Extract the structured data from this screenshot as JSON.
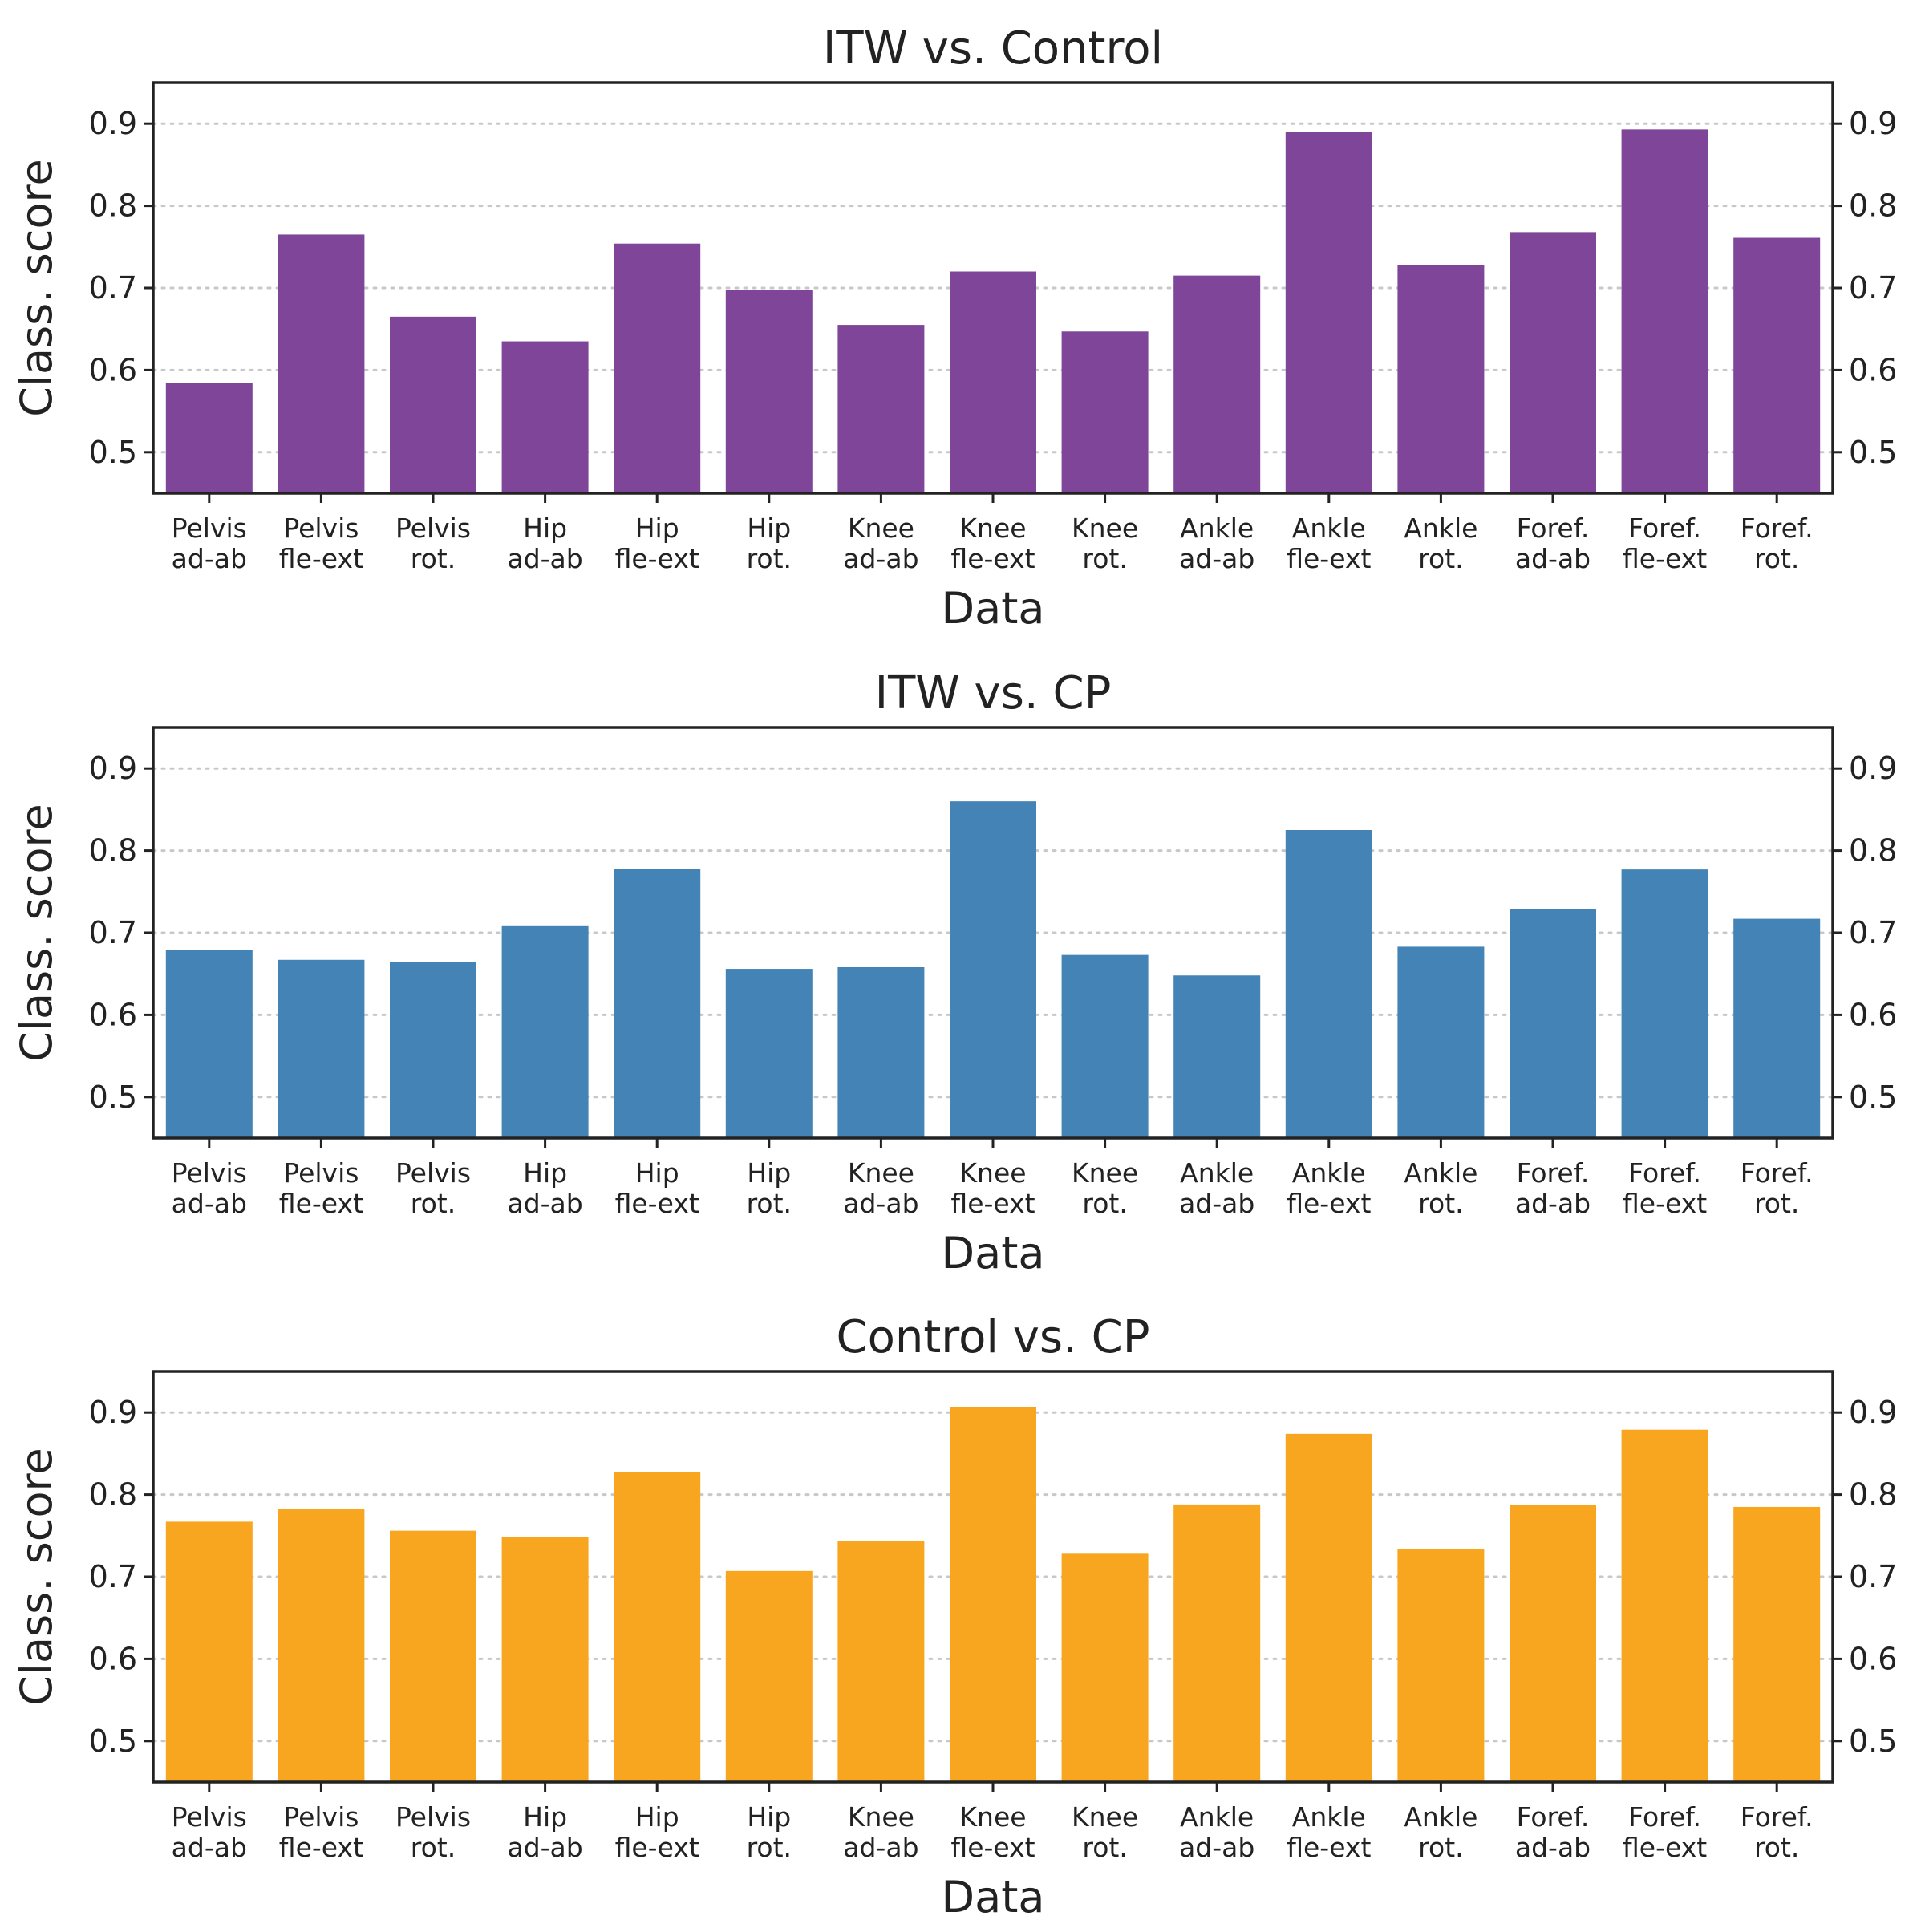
{
  "chart_data": [
    {
      "type": "bar",
      "title": "ITW vs. Control",
      "xlabel": "Data",
      "ylabel": "Class. score",
      "ylim": [
        0.45,
        0.95
      ],
      "yticks": [
        "0.5",
        "0.6",
        "0.7",
        "0.8",
        "0.9"
      ],
      "grid": "horizontal dotted",
      "color": "#7e4599",
      "categories": [
        [
          "Pelvis",
          "ad-ab"
        ],
        [
          "Pelvis",
          "fle-ext"
        ],
        [
          "Pelvis",
          "rot."
        ],
        [
          "Hip",
          "ad-ab"
        ],
        [
          "Hip",
          "fle-ext"
        ],
        [
          "Hip",
          "rot."
        ],
        [
          "Knee",
          "ad-ab"
        ],
        [
          "Knee",
          "fle-ext"
        ],
        [
          "Knee",
          "rot."
        ],
        [
          "Ankle",
          "ad-ab"
        ],
        [
          "Ankle",
          "fle-ext"
        ],
        [
          "Ankle",
          "rot."
        ],
        [
          "Foref.",
          "ad-ab"
        ],
        [
          "Foref.",
          "fle-ext"
        ],
        [
          "Foref.",
          "rot."
        ]
      ],
      "values": [
        0.584,
        0.765,
        0.665,
        0.635,
        0.754,
        0.698,
        0.655,
        0.72,
        0.647,
        0.715,
        0.89,
        0.728,
        0.768,
        0.893,
        0.761
      ]
    },
    {
      "type": "bar",
      "title": "ITW vs. CP",
      "xlabel": "Data",
      "ylabel": "Class. score",
      "ylim": [
        0.45,
        0.95
      ],
      "yticks": [
        "0.5",
        "0.6",
        "0.7",
        "0.8",
        "0.9"
      ],
      "grid": "horizontal dotted",
      "color": "#4383b5",
      "categories": [
        [
          "Pelvis",
          "ad-ab"
        ],
        [
          "Pelvis",
          "fle-ext"
        ],
        [
          "Pelvis",
          "rot."
        ],
        [
          "Hip",
          "ad-ab"
        ],
        [
          "Hip",
          "fle-ext"
        ],
        [
          "Hip",
          "rot."
        ],
        [
          "Knee",
          "ad-ab"
        ],
        [
          "Knee",
          "fle-ext"
        ],
        [
          "Knee",
          "rot."
        ],
        [
          "Ankle",
          "ad-ab"
        ],
        [
          "Ankle",
          "fle-ext"
        ],
        [
          "Ankle",
          "rot."
        ],
        [
          "Foref.",
          "ad-ab"
        ],
        [
          "Foref.",
          "fle-ext"
        ],
        [
          "Foref.",
          "rot."
        ]
      ],
      "values": [
        0.679,
        0.667,
        0.664,
        0.708,
        0.778,
        0.656,
        0.658,
        0.86,
        0.673,
        0.648,
        0.825,
        0.683,
        0.729,
        0.777,
        0.717
      ]
    },
    {
      "type": "bar",
      "title": "Control vs. CP",
      "xlabel": "Data",
      "ylabel": "Class. score",
      "ylim": [
        0.45,
        0.95
      ],
      "yticks": [
        "0.5",
        "0.6",
        "0.7",
        "0.8",
        "0.9"
      ],
      "grid": "horizontal dotted",
      "color": "#f8a51f",
      "categories": [
        [
          "Pelvis",
          "ad-ab"
        ],
        [
          "Pelvis",
          "fle-ext"
        ],
        [
          "Pelvis",
          "rot."
        ],
        [
          "Hip",
          "ad-ab"
        ],
        [
          "Hip",
          "fle-ext"
        ],
        [
          "Hip",
          "rot."
        ],
        [
          "Knee",
          "ad-ab"
        ],
        [
          "Knee",
          "fle-ext"
        ],
        [
          "Knee",
          "rot."
        ],
        [
          "Ankle",
          "ad-ab"
        ],
        [
          "Ankle",
          "fle-ext"
        ],
        [
          "Ankle",
          "rot."
        ],
        [
          "Foref.",
          "ad-ab"
        ],
        [
          "Foref.",
          "fle-ext"
        ],
        [
          "Foref.",
          "rot."
        ]
      ],
      "values": [
        0.767,
        0.783,
        0.756,
        0.748,
        0.827,
        0.707,
        0.743,
        0.907,
        0.728,
        0.788,
        0.874,
        0.734,
        0.787,
        0.879,
        0.785
      ]
    }
  ]
}
